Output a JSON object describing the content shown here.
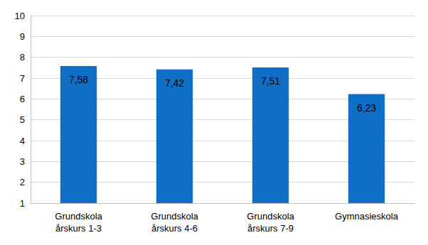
{
  "chart_data": {
    "type": "bar",
    "categories": [
      "Grundskola\nårskurs 1-3",
      "Grundskola\nårskurs 4-6",
      "Grundskola\nårskurs 7-9",
      "Gymnasieskola"
    ],
    "values": [
      7.58,
      7.42,
      7.51,
      6.23
    ],
    "value_labels": [
      "7,58",
      "7,42",
      "7,51",
      "6,23"
    ],
    "color": "#0f6fc6",
    "ylim": [
      1,
      10
    ],
    "yticks": [
      1,
      2,
      3,
      4,
      5,
      6,
      7,
      8,
      9,
      10
    ],
    "grid": true,
    "data_labels": true
  }
}
